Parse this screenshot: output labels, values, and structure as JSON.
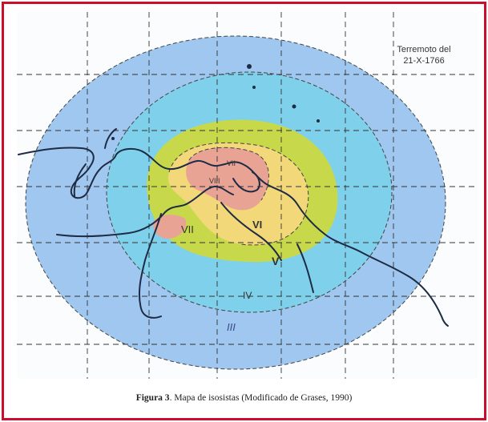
{
  "map": {
    "title_line1": "Terremoto del",
    "title_line2": "21-X-1766",
    "zones": [
      {
        "label": "VIII",
        "color": "#e8a394"
      },
      {
        "label": "VII",
        "color": "#f2d879"
      },
      {
        "label": "VI",
        "color": "#c7d94a"
      },
      {
        "label": "V",
        "color": "#7fd0ea"
      },
      {
        "label": "IV",
        "color": "#9fc7ef"
      },
      {
        "label": "III",
        "color": "#ffffff"
      }
    ],
    "zone_labels": {
      "viii": "VIII",
      "vii_center": "VII",
      "vii_west": "VII",
      "vi": "VI",
      "v": "V",
      "iv": "IV",
      "iii": "III"
    }
  },
  "caption": {
    "label": "Figura 3",
    "text": ". Mapa de isosistas (Modificado de Grases, 1990)"
  }
}
